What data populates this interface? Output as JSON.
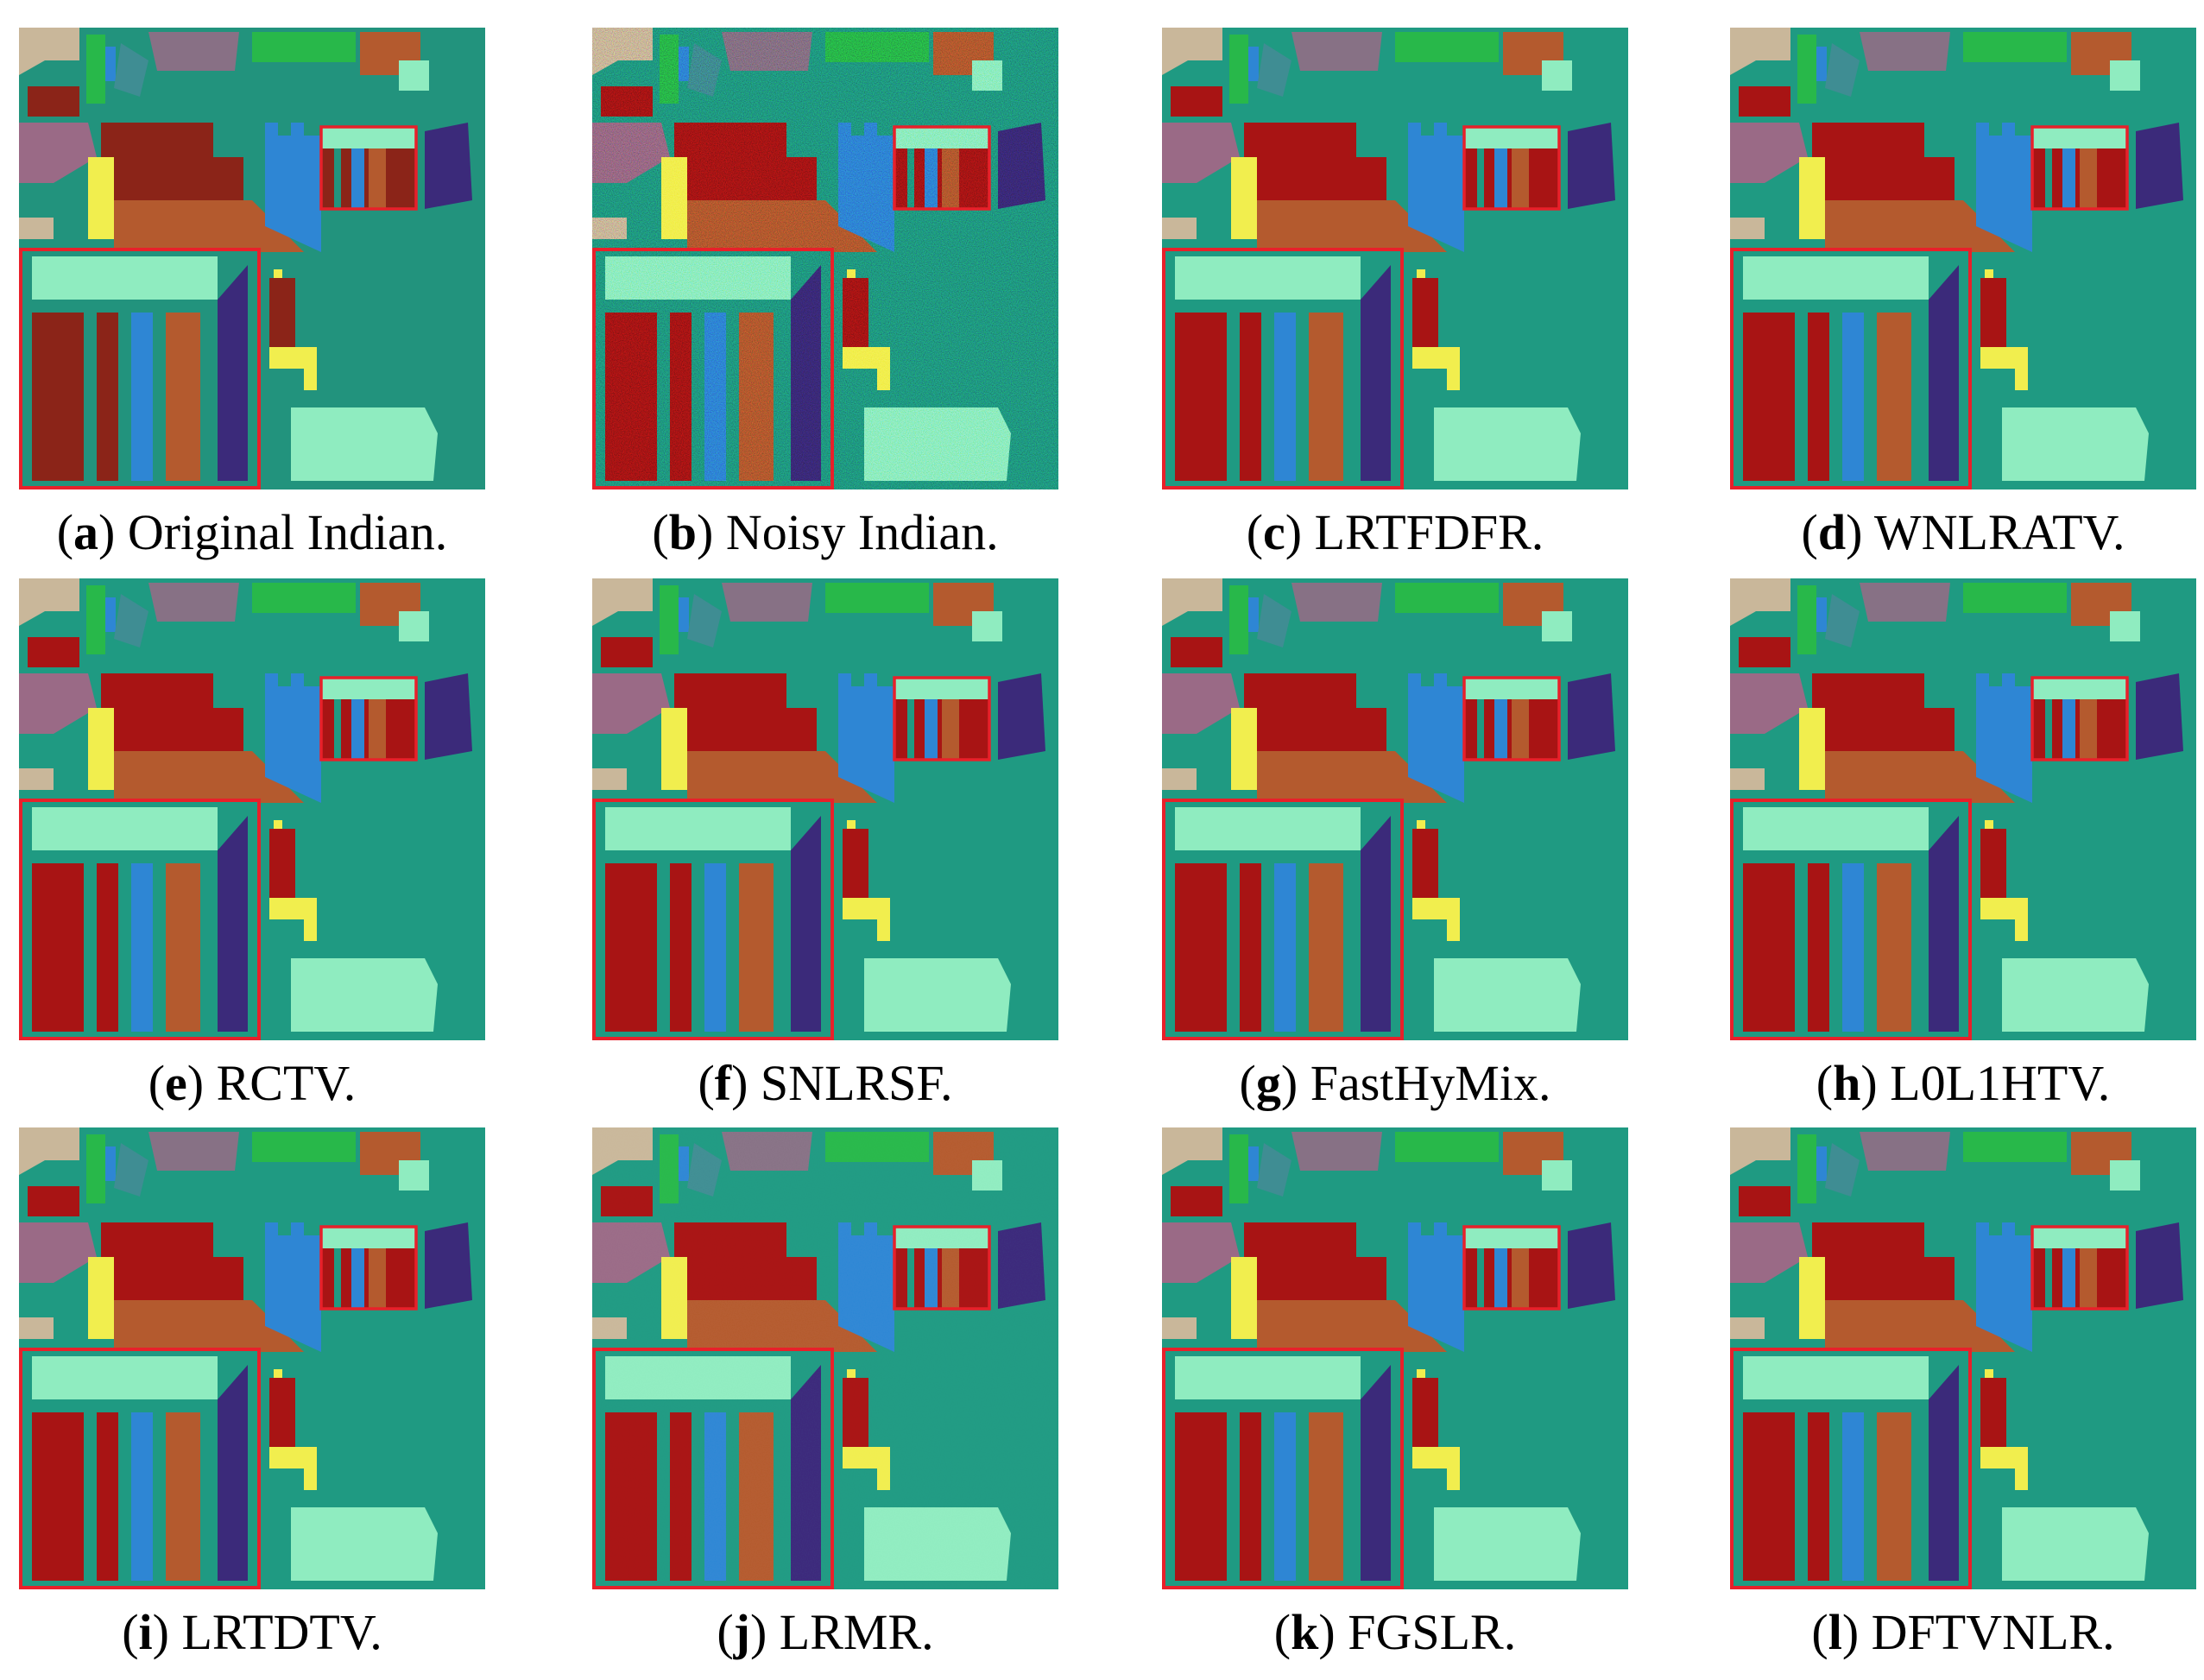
{
  "panels": [
    {
      "letter": "a",
      "label": "Original Indian.",
      "variant": "original",
      "zoom_box_color": "#e8202a"
    },
    {
      "letter": "b",
      "label": "Noisy Indian.",
      "variant": "noisy",
      "zoom_box_color": "#e8202a"
    },
    {
      "letter": "c",
      "label": "LRTFDFR.",
      "variant": "clean",
      "zoom_box_color": "#e8202a"
    },
    {
      "letter": "d",
      "label": "WNLRATV.",
      "variant": "clean",
      "zoom_box_color": "#e8202a"
    },
    {
      "letter": "e",
      "label": "RCTV.",
      "variant": "clean",
      "zoom_box_color": "#e8202a"
    },
    {
      "letter": "f",
      "label": "SNLRSF.",
      "variant": "clean",
      "zoom_box_color": "#e8202a"
    },
    {
      "letter": "g",
      "label": "FastHyMix.",
      "variant": "clean",
      "zoom_box_color": "#e8202a"
    },
    {
      "letter": "h",
      "label": "L0L1HTV.",
      "variant": "clean",
      "zoom_box_color": "#e8202a"
    },
    {
      "letter": "i",
      "label": "LRTDTV.",
      "variant": "clean",
      "zoom_box_color": "#e8202a"
    },
    {
      "letter": "j",
      "label": "LRMR.",
      "variant": "grainy",
      "zoom_box_color": "#e8202a"
    },
    {
      "letter": "k",
      "label": "FGSLR.",
      "variant": "clean",
      "zoom_box_color": "#e8202a"
    },
    {
      "letter": "l",
      "label": "DFTVNLR.",
      "variant": "clean",
      "zoom_box_color": "#e8202a"
    }
  ],
  "palette": {
    "background": "#1f9a82",
    "background_original": "#22937d",
    "dark_red": "#a81414",
    "orange_brown": "#b45a2e",
    "blue": "#2e86d4",
    "purple": "#3b2a7a",
    "yellow": "#f1ee4e",
    "mint": "#8fecc0",
    "tan": "#c9b79a",
    "green": "#28b84a",
    "mauve": "#9a6a86",
    "slate": "#3f8d93",
    "noise": "#6db07b"
  }
}
